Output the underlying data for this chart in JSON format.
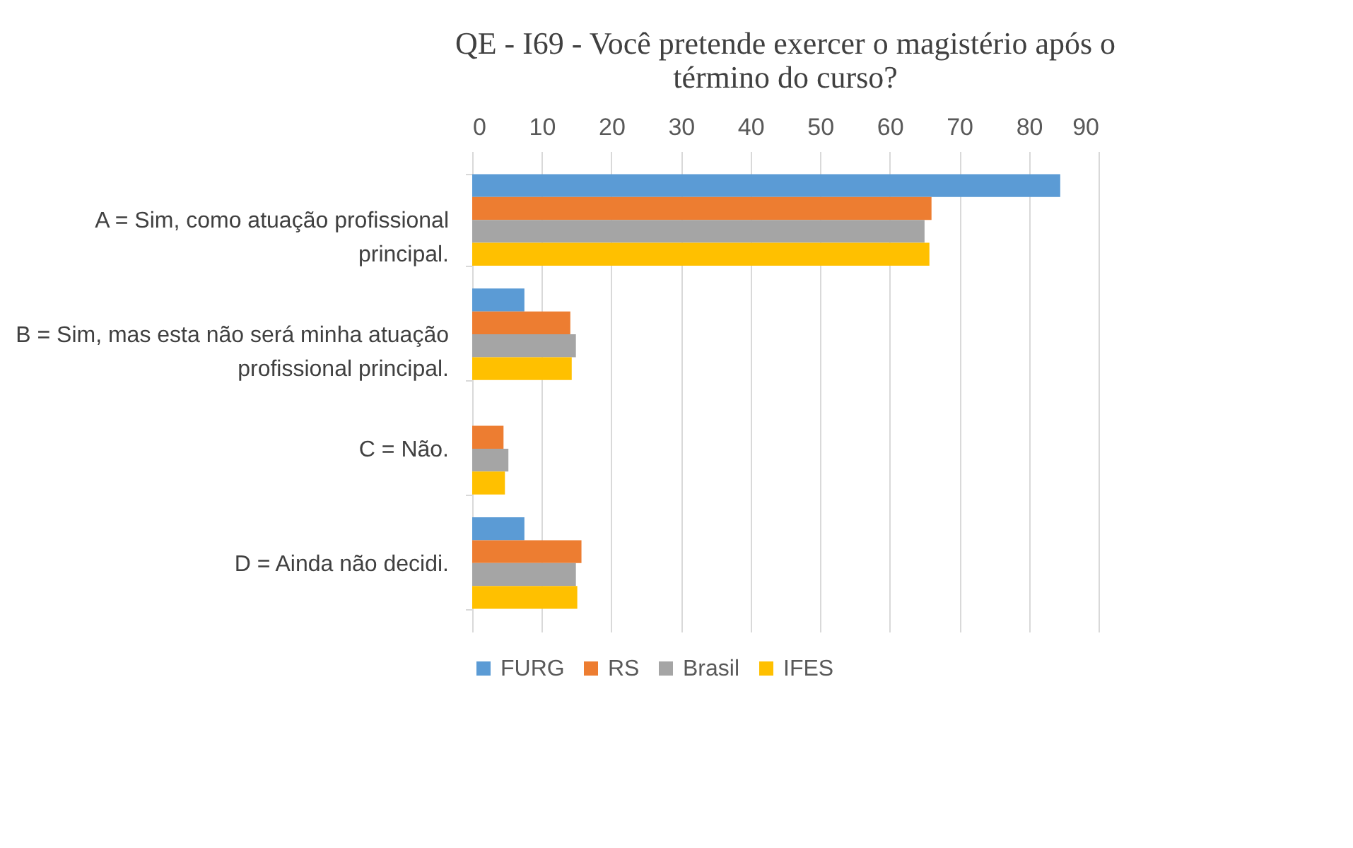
{
  "chart_data": {
    "type": "bar",
    "orientation": "horizontal",
    "title": "QE - I69 - Você pretende exercer o magistério após o término do curso?",
    "categories": [
      "A = Sim, como atuação profissional principal.",
      "B = Sim, mas esta não será minha atuação profissional principal.",
      "C = Não.",
      "D = Ainda não decidi."
    ],
    "series": [
      {
        "name": "FURG",
        "color": "#5b9bd5",
        "values": [
          84.5,
          7.5,
          0,
          7.5
        ]
      },
      {
        "name": "RS",
        "color": "#ed7d31",
        "values": [
          66,
          14.1,
          4.5,
          15.7
        ]
      },
      {
        "name": "Brasil",
        "color": "#a5a5a5",
        "values": [
          65,
          14.9,
          5.2,
          14.9
        ]
      },
      {
        "name": "IFES",
        "color": "#ffc000",
        "values": [
          65.7,
          14.3,
          4.7,
          15.1
        ]
      }
    ],
    "xlim": [
      0,
      90
    ],
    "xticks": [
      0,
      10,
      20,
      30,
      40,
      50,
      60,
      70,
      80,
      90
    ],
    "grid": true,
    "legend": "bottom"
  }
}
